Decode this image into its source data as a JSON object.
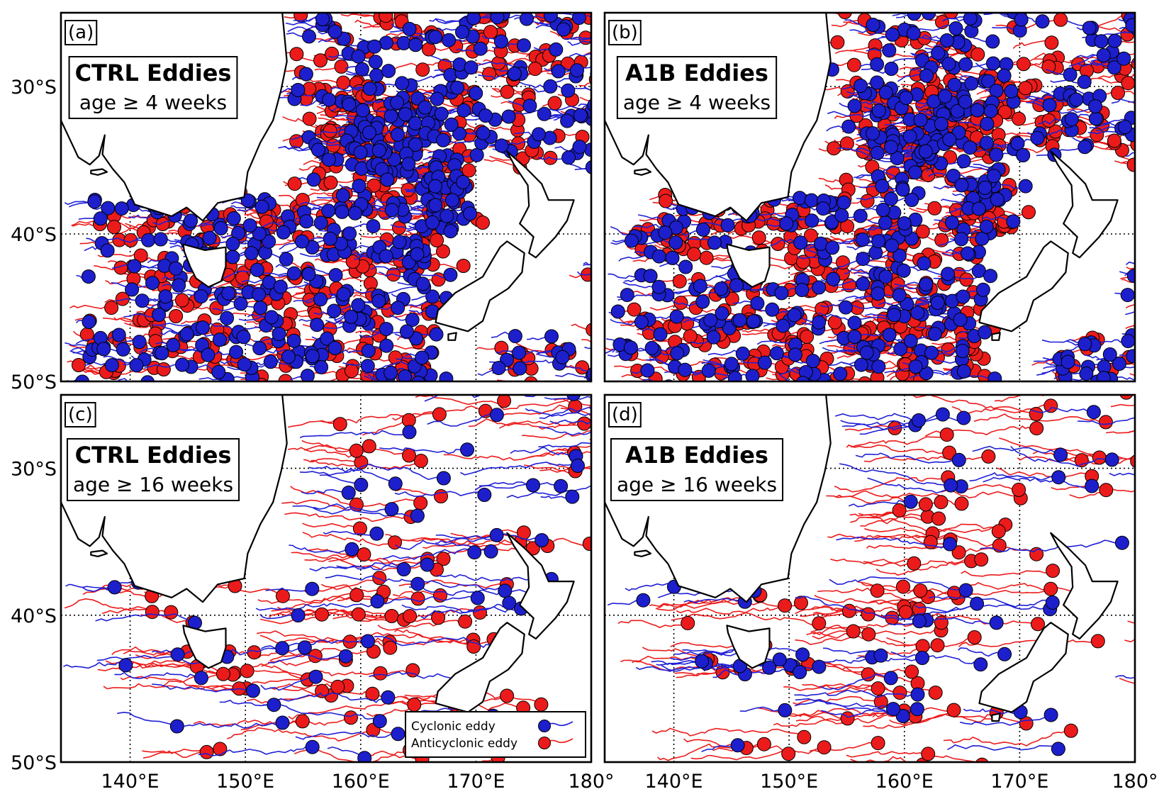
{
  "map": {
    "lon_range": [
      134,
      180
    ],
    "lat_range": [
      -50,
      -25
    ],
    "colors": {
      "cyclonic": "#1d1fcc",
      "anticyclonic": "#ec1b1b"
    }
  },
  "axes": {
    "y_ticks": [
      {
        "lat": -30,
        "label": "30°S"
      },
      {
        "lat": -40,
        "label": "40°S"
      },
      {
        "lat": -50,
        "label": "50°S"
      }
    ],
    "x_ticks": [
      {
        "lon": 140,
        "label": "140°E"
      },
      {
        "lon": 150,
        "label": "150°E"
      },
      {
        "lon": 160,
        "label": "160°E"
      },
      {
        "lon": 170,
        "label": "170°E"
      },
      {
        "lon": 180,
        "label": "180°"
      }
    ]
  },
  "panels": [
    {
      "letter": "(a)",
      "title": "CTRL Eddies",
      "subtitle": "age ≥ 4 weeks",
      "cyclonic_density": 520,
      "anticyclonic_density": 520
    },
    {
      "letter": "(b)",
      "title": "A1B Eddies",
      "subtitle": "age ≥ 4 weeks",
      "cyclonic_density": 500,
      "anticyclonic_density": 560
    },
    {
      "letter": "(c)",
      "title": "CTRL Eddies",
      "subtitle": "age ≥ 16 weeks",
      "cyclonic_density": 70,
      "anticyclonic_density": 110
    },
    {
      "letter": "(d)",
      "title": "A1B Eddies",
      "subtitle": "age ≥ 16 weeks",
      "cyclonic_density": 60,
      "anticyclonic_density": 120
    }
  ],
  "legend": {
    "panel": 2,
    "items": [
      {
        "label": "Cyclonic eddy",
        "type": "cyclonic"
      },
      {
        "label": "Anticyclonic eddy",
        "type": "anticyclonic"
      }
    ]
  }
}
